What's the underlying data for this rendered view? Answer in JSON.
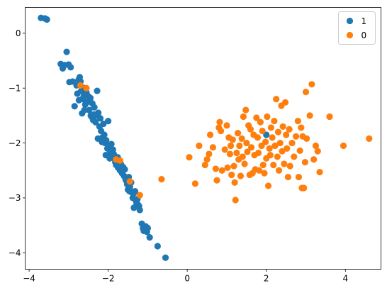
{
  "chart_data": {
    "type": "scatter",
    "title": "",
    "xlabel": "",
    "ylabel": "",
    "xlim": [
      -4.1,
      4.9
    ],
    "ylim": [
      -4.3,
      0.47
    ],
    "xticks": [
      -4,
      -2,
      0,
      2,
      4
    ],
    "yticks": [
      0,
      -1,
      -2,
      -3,
      -4
    ],
    "grid": false,
    "legend": {
      "position": "top-right"
    },
    "series": [
      {
        "name": "1",
        "color": "#1f77b4",
        "points": [
          [
            -3.7,
            0.28
          ],
          [
            -3.6,
            0.27
          ],
          [
            -3.55,
            0.25
          ],
          [
            -3.2,
            -0.56
          ],
          [
            -3.15,
            -0.64
          ],
          [
            -3.1,
            -0.58
          ],
          [
            -3.05,
            -0.34
          ],
          [
            -3.0,
            -0.57
          ],
          [
            -2.95,
            -0.62
          ],
          [
            -2.98,
            -0.89
          ],
          [
            -2.8,
            -0.95
          ],
          [
            -2.75,
            -0.85
          ],
          [
            -2.72,
            -0.8
          ],
          [
            -2.7,
            -0.88
          ],
          [
            -2.68,
            -1.05
          ],
          [
            -2.65,
            -1.2
          ],
          [
            -2.62,
            -1.15
          ],
          [
            -2.6,
            -1.0
          ],
          [
            -2.58,
            -1.3
          ],
          [
            -2.55,
            -1.08
          ],
          [
            -2.52,
            -1.25
          ],
          [
            -2.5,
            -1.15
          ],
          [
            -2.48,
            -1.4
          ],
          [
            -2.45,
            -1.18
          ],
          [
            -2.42,
            -1.52
          ],
          [
            -2.4,
            -1.28
          ],
          [
            -2.38,
            -1.58
          ],
          [
            -2.35,
            -1.35
          ],
          [
            -2.32,
            -1.62
          ],
          [
            -2.3,
            -1.5
          ],
          [
            -2.28,
            -1.05
          ],
          [
            -2.25,
            -1.45
          ],
          [
            -2.22,
            -1.7
          ],
          [
            -2.2,
            -1.55
          ],
          [
            -2.18,
            -1.78
          ],
          [
            -2.15,
            -1.9
          ],
          [
            -2.12,
            -1.65
          ],
          [
            -2.1,
            -1.85
          ],
          [
            -2.08,
            -2.0
          ],
          [
            -2.05,
            -1.95
          ],
          [
            -2.02,
            -2.1
          ],
          [
            -2.0,
            -1.6
          ],
          [
            -1.98,
            -2.05
          ],
          [
            -1.95,
            -2.18
          ],
          [
            -1.92,
            -2.02
          ],
          [
            -1.9,
            -2.25
          ],
          [
            -1.88,
            -2.12
          ],
          [
            -1.85,
            -2.28
          ],
          [
            -1.82,
            -2.35
          ],
          [
            -1.8,
            -2.4
          ],
          [
            -1.78,
            -2.3
          ],
          [
            -1.75,
            -2.45
          ],
          [
            -1.72,
            -2.32
          ],
          [
            -1.7,
            -2.5
          ],
          [
            -1.68,
            -2.38
          ],
          [
            -1.65,
            -2.55
          ],
          [
            -1.62,
            -2.44
          ],
          [
            -1.6,
            -2.6
          ],
          [
            -1.58,
            -2.48
          ],
          [
            -1.55,
            -2.68
          ],
          [
            -1.52,
            -2.75
          ],
          [
            -1.5,
            -2.85
          ],
          [
            -1.48,
            -2.62
          ],
          [
            -1.45,
            -2.8
          ],
          [
            -1.42,
            -2.72
          ],
          [
            -1.4,
            -2.9
          ],
          [
            -1.38,
            -3.0
          ],
          [
            -1.35,
            -3.18
          ],
          [
            -1.32,
            -2.88
          ],
          [
            -1.3,
            -3.05
          ],
          [
            -1.28,
            -3.1
          ],
          [
            -1.25,
            -3.12
          ],
          [
            -1.22,
            -3.15
          ],
          [
            -1.2,
            -3.22
          ],
          [
            -1.15,
            -3.47
          ],
          [
            -1.12,
            -3.55
          ],
          [
            -1.1,
            -3.6
          ],
          [
            -1.05,
            -3.52
          ],
          [
            -1.02,
            -3.62
          ],
          [
            -1.0,
            -3.55
          ],
          [
            -0.95,
            -3.72
          ],
          [
            -0.75,
            -3.88
          ],
          [
            -0.55,
            -4.09
          ],
          [
            -2.9,
            -0.88
          ],
          [
            -2.85,
            -1.33
          ],
          [
            -2.78,
            -1.1
          ],
          [
            -2.74,
            -1.22
          ],
          [
            -2.66,
            -1.46
          ],
          [
            -2.6,
            -1.4
          ],
          [
            -2.44,
            -1.5
          ],
          [
            -2.36,
            -1.48
          ],
          [
            -2.26,
            -1.92
          ],
          [
            -2.16,
            -1.98
          ],
          [
            -2.06,
            -2.22
          ],
          [
            -1.96,
            -2.28
          ],
          [
            -1.86,
            -2.2
          ],
          [
            -1.76,
            -2.26
          ],
          [
            -1.66,
            -2.48
          ],
          [
            -1.56,
            -2.66
          ],
          [
            -1.46,
            -2.88
          ],
          [
            -1.36,
            -2.92
          ],
          [
            -1.26,
            -3.02
          ],
          [
            2.0,
            -1.85
          ]
        ]
      },
      {
        "name": "0",
        "color": "#ff7f0e",
        "points": [
          [
            -2.7,
            -0.95
          ],
          [
            -2.55,
            -1.0
          ],
          [
            -1.8,
            -2.3
          ],
          [
            -1.7,
            -2.32
          ],
          [
            -1.45,
            -2.7
          ],
          [
            -1.2,
            -2.95
          ],
          [
            -0.65,
            -2.66
          ],
          [
            0.05,
            -2.26
          ],
          [
            0.2,
            -2.74
          ],
          [
            0.3,
            -2.05
          ],
          [
            0.45,
            -2.4
          ],
          [
            0.5,
            -2.3
          ],
          [
            0.55,
            -2.2
          ],
          [
            0.58,
            -1.85
          ],
          [
            0.65,
            -2.08
          ],
          [
            0.72,
            -2.47
          ],
          [
            0.75,
            -2.68
          ],
          [
            0.8,
            -1.72
          ],
          [
            0.82,
            -1.62
          ],
          [
            0.85,
            -1.78
          ],
          [
            0.88,
            -2.5
          ],
          [
            0.95,
            -2.12
          ],
          [
            1.0,
            -1.68
          ],
          [
            1.02,
            -2.45
          ],
          [
            1.05,
            -1.9
          ],
          [
            1.08,
            -2.2
          ],
          [
            1.1,
            -2.05
          ],
          [
            1.12,
            -2.58
          ],
          [
            1.15,
            -1.94
          ],
          [
            1.18,
            -2.42
          ],
          [
            1.2,
            -2.72
          ],
          [
            1.22,
            -3.04
          ],
          [
            1.25,
            -2.18
          ],
          [
            1.28,
            -1.82
          ],
          [
            1.3,
            -2.3
          ],
          [
            1.32,
            -2.05
          ],
          [
            1.35,
            -2.6
          ],
          [
            1.38,
            -1.92
          ],
          [
            1.4,
            -2.25
          ],
          [
            1.42,
            -1.52
          ],
          [
            1.45,
            -2.38
          ],
          [
            1.48,
            -1.4
          ],
          [
            1.5,
            -2.0
          ],
          [
            1.52,
            -2.16
          ],
          [
            1.55,
            -1.68
          ],
          [
            1.58,
            -2.58
          ],
          [
            1.6,
            -1.75
          ],
          [
            1.62,
            -2.08
          ],
          [
            1.65,
            -2.55
          ],
          [
            1.68,
            -1.85
          ],
          [
            1.7,
            -2.22
          ],
          [
            1.72,
            -2.48
          ],
          [
            1.75,
            -1.54
          ],
          [
            1.78,
            -1.9
          ],
          [
            1.8,
            -2.18
          ],
          [
            1.82,
            -2.5
          ],
          [
            1.85,
            -1.62
          ],
          [
            1.88,
            -2.05
          ],
          [
            1.9,
            -1.78
          ],
          [
            1.92,
            -2.4
          ],
          [
            1.95,
            -2.55
          ],
          [
            1.98,
            -1.98
          ],
          [
            2.0,
            -2.28
          ],
          [
            2.02,
            -1.52
          ],
          [
            2.05,
            -2.78
          ],
          [
            2.08,
            -2.1
          ],
          [
            2.1,
            -2.22
          ],
          [
            2.12,
            -1.72
          ],
          [
            2.15,
            -1.9
          ],
          [
            2.18,
            -2.4
          ],
          [
            2.2,
            -1.6
          ],
          [
            2.22,
            -2.05
          ],
          [
            2.25,
            -1.2
          ],
          [
            2.28,
            -2.25
          ],
          [
            2.3,
            -1.8
          ],
          [
            2.32,
            -2.5
          ],
          [
            2.35,
            -2.0
          ],
          [
            2.38,
            -1.32
          ],
          [
            2.4,
            -2.15
          ],
          [
            2.42,
            -1.7
          ],
          [
            2.45,
            -2.38
          ],
          [
            2.48,
            -1.26
          ],
          [
            2.5,
            -1.85
          ],
          [
            2.52,
            -2.1
          ],
          [
            2.55,
            -2.62
          ],
          [
            2.58,
            -1.75
          ],
          [
            2.6,
            -2.42
          ],
          [
            2.65,
            -2.0
          ],
          [
            2.7,
            -2.25
          ],
          [
            2.75,
            -1.88
          ],
          [
            2.8,
            -1.6
          ],
          [
            2.82,
            -2.62
          ],
          [
            2.85,
            -2.14
          ],
          [
            2.88,
            -1.72
          ],
          [
            2.9,
            -2.82
          ],
          [
            2.92,
            -1.88
          ],
          [
            2.95,
            -2.82
          ],
          [
            2.98,
            -2.35
          ],
          [
            3.0,
            -1.07
          ],
          [
            3.02,
            -1.92
          ],
          [
            3.1,
            -1.5
          ],
          [
            3.15,
            -0.93
          ],
          [
            3.2,
            -2.3
          ],
          [
            3.25,
            -2.05
          ],
          [
            3.3,
            -2.15
          ],
          [
            3.35,
            -2.53
          ],
          [
            3.6,
            -1.52
          ],
          [
            3.95,
            -2.05
          ],
          [
            4.6,
            -1.92
          ]
        ]
      }
    ]
  }
}
